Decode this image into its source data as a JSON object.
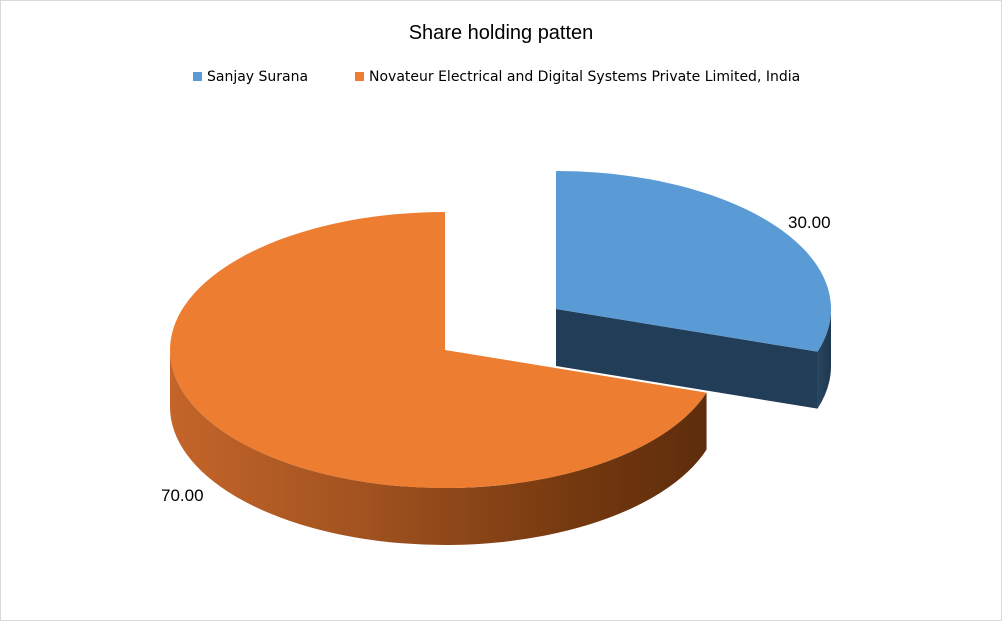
{
  "chart_data": {
    "type": "pie",
    "title": "Share holding patten",
    "legend_position": "top",
    "exploded": true,
    "three_d": true,
    "series": [
      {
        "labels": [
          "Sanjay Surana",
          "Novateur Electrical and Digital Systems Private Limited, India"
        ],
        "values": [
          30.0,
          70.0
        ],
        "data_labels": [
          "30.00",
          "70.00"
        ],
        "colors": [
          "#5b9bd5",
          "#ed7d31"
        ]
      }
    ]
  }
}
